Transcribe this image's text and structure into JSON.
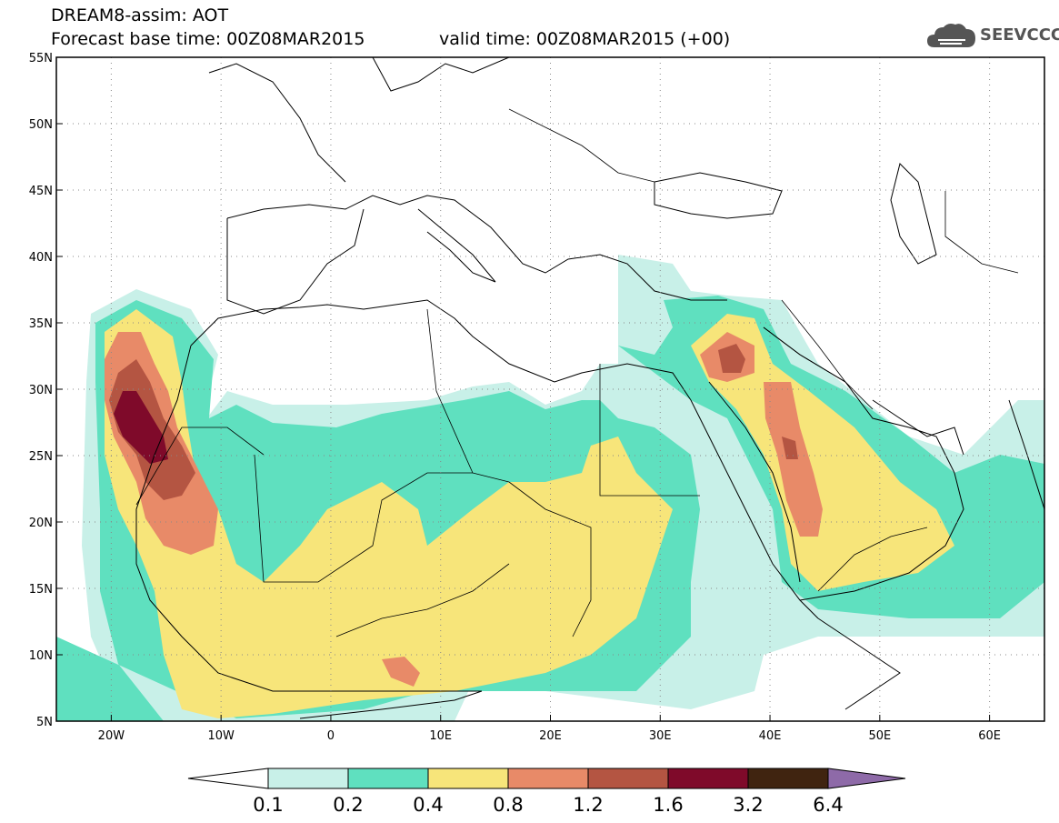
{
  "title": {
    "line1": "DREAM8-assim: AOT",
    "line2": "Forecast base time: 00Z08MAR2015",
    "valid": "valid time: 00Z08MAR2015 (+00)"
  },
  "logo": {
    "text": "SEEVCCC",
    "icon": "cloud-icon"
  },
  "map": {
    "lon_range": [
      -25,
      65
    ],
    "lat_range": [
      5,
      55
    ],
    "lon_ticks": [
      "20W",
      "10W",
      "0",
      "10E",
      "20E",
      "30E",
      "40E",
      "50E",
      "60E"
    ],
    "lat_ticks": [
      "55N",
      "50N",
      "45N",
      "40N",
      "35N",
      "30N",
      "25N",
      "20N",
      "15N",
      "10N",
      "5N"
    ],
    "grid": "dotted"
  },
  "colorbar": {
    "levels": [
      "0.1",
      "0.2",
      "0.4",
      "0.8",
      "1.2",
      "1.6",
      "3.2",
      "6.4"
    ],
    "colors": [
      "#ffffff",
      "#c8f0e8",
      "#5fe0bf",
      "#f7e57a",
      "#e88a68",
      "#b45542",
      "#7f0a2a",
      "#402410",
      "#8e6aa8"
    ]
  }
}
